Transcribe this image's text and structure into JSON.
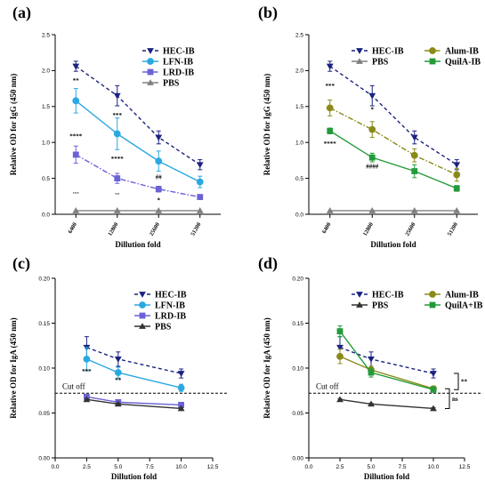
{
  "chart_data": [
    {
      "type": "line",
      "panel_label": "(a)",
      "xlabel": "Dillution fold",
      "ylabel": "Relative OD for IgG (450 nm)",
      "x_type": "category",
      "categories": [
        "6400",
        "12800",
        "25600",
        "51200"
      ],
      "ylim": [
        0,
        2.5
      ],
      "yticks": [
        "0.0",
        "0.5",
        "1.0",
        "1.5",
        "2.0",
        "2.5"
      ],
      "legend_position": "top-right",
      "series": [
        {
          "name": "HEC-IB",
          "color": "#1a237e",
          "dash": "4,3",
          "marker": "triangle-down",
          "values": [
            2.06,
            1.65,
            1.07,
            0.69
          ],
          "errors": [
            0.07,
            0.14,
            0.09,
            0.07
          ]
        },
        {
          "name": "LFN-IB",
          "color": "#2aa9e0",
          "dash": "",
          "marker": "circle",
          "values": [
            1.58,
            1.12,
            0.74,
            0.45
          ],
          "errors": [
            0.17,
            0.22,
            0.14,
            0.08
          ]
        },
        {
          "name": "LRD-IB",
          "color": "#6b62d6",
          "dash": "6,2,1.5,2",
          "marker": "square",
          "values": [
            0.83,
            0.5,
            0.35,
            0.24
          ],
          "errors": [
            0.12,
            0.07,
            0.04,
            0.02
          ]
        },
        {
          "name": "PBS",
          "color": "#808080",
          "dash": "",
          "marker": "triangle-up",
          "values": [
            0.05,
            0.05,
            0.05,
            0.05
          ],
          "errors": [
            0.0,
            0.0,
            0.0,
            0.0
          ]
        }
      ],
      "annotations": [
        {
          "text": "**",
          "x_index": 0,
          "y": 1.83
        },
        {
          "text": "****",
          "x_index": 0,
          "y": 1.06
        },
        {
          "text": "....",
          "x_index": 0,
          "y": 0.29
        },
        {
          "text": "***",
          "x_index": 1,
          "y": 1.35
        },
        {
          "text": "****",
          "x_index": 1,
          "y": 0.74
        },
        {
          "text": "...",
          "x_index": 1,
          "y": 0.28
        },
        {
          "text": "##",
          "x_index": 2,
          "y": 0.49
        },
        {
          "text": "*",
          "x_index": 2,
          "y": 0.17
        }
      ]
    },
    {
      "type": "line",
      "panel_label": "(b)",
      "xlabel": "Dillution fold",
      "ylabel": "Relative OD for IgG (450 nm)",
      "x_type": "category",
      "categories": [
        "6400",
        "12800",
        "25600",
        "51200"
      ],
      "ylim": [
        0,
        2.5
      ],
      "yticks": [
        "0.0",
        "0.5",
        "1.0",
        "1.5",
        "2.0",
        "2.5"
      ],
      "legend_position": "top-right",
      "legend_columns": 2,
      "series": [
        {
          "name": "HEC-IB",
          "color": "#1a237e",
          "dash": "4,3",
          "marker": "triangle-down",
          "values": [
            2.06,
            1.65,
            1.07,
            0.69
          ],
          "errors": [
            0.07,
            0.14,
            0.09,
            0.07
          ]
        },
        {
          "name": "PBS",
          "color": "#808080",
          "dash": "",
          "marker": "triangle-up",
          "values": [
            0.05,
            0.05,
            0.05,
            0.05
          ],
          "errors": [
            0.0,
            0.0,
            0.0,
            0.0
          ]
        },
        {
          "name": "Alum-IB",
          "color": "#8a8a18",
          "dash": "6,2,1.5,2",
          "marker": "circle",
          "values": [
            1.48,
            1.18,
            0.82,
            0.55
          ],
          "errors": [
            0.11,
            0.11,
            0.09,
            0.09
          ]
        },
        {
          "name": "QuilA-IB",
          "color": "#239b3a",
          "dash": "",
          "marker": "square",
          "values": [
            1.16,
            0.79,
            0.6,
            0.36
          ],
          "errors": [
            0.04,
            0.06,
            0.09,
            0.04
          ]
        }
      ],
      "annotations": [
        {
          "text": "***",
          "x_index": 0,
          "y": 1.76
        },
        {
          "text": "****",
          "x_index": 0,
          "y": 0.95
        },
        {
          "text": "*",
          "x_index": 1,
          "y": 1.43
        },
        {
          "text": "####",
          "x_index": 1,
          "y": 0.64
        }
      ]
    },
    {
      "type": "line",
      "panel_label": "(c)",
      "xlabel": "Dillution fold",
      "ylabel": "Relative OD for IgA (450 nm)",
      "x_type": "numeric",
      "xlim": [
        0,
        12.5
      ],
      "xticks": [
        "0.0",
        "2.5",
        "5.0",
        "7.5",
        "10.0",
        "12.5"
      ],
      "ylim": [
        0,
        0.2
      ],
      "yticks": [
        "0.00",
        "0.05",
        "0.10",
        "0.15",
        "0.20"
      ],
      "legend_position": "top-right",
      "reference_line": {
        "y": 0.072,
        "label": "Cut off"
      },
      "series": [
        {
          "name": "HEC-IB",
          "color": "#1a237e",
          "dash": "4,3",
          "marker": "triangle-down",
          "x": [
            2.5,
            5.0,
            10.0
          ],
          "values": [
            0.123,
            0.11,
            0.094
          ],
          "errors": [
            0.012,
            0.008,
            0.005
          ]
        },
        {
          "name": "LFN-IB",
          "color": "#2aa9e0",
          "dash": "",
          "marker": "circle",
          "x": [
            2.5,
            5.0,
            10.0
          ],
          "values": [
            0.11,
            0.095,
            0.078
          ],
          "errors": [
            0.013,
            0.006,
            0.004
          ]
        },
        {
          "name": "LRD-IB",
          "color": "#6b62d6",
          "dash": "",
          "marker": "square",
          "x": [
            2.5,
            5.0,
            10.0
          ],
          "values": [
            0.068,
            0.062,
            0.059
          ],
          "errors": [
            0.002,
            0.001,
            0.001
          ]
        },
        {
          "name": "PBS",
          "color": "#333333",
          "dash": "",
          "marker": "triangle-up",
          "x": [
            2.5,
            5.0,
            10.0
          ],
          "values": [
            0.065,
            0.06,
            0.055
          ],
          "errors": [
            0.001,
            0.001,
            0.001
          ]
        }
      ],
      "annotations": [
        {
          "text": "***",
          "x": 2.5,
          "y": 0.094
        },
        {
          "text": "**",
          "x": 5.0,
          "y": 0.084
        }
      ]
    },
    {
      "type": "line",
      "panel_label": "(d)",
      "xlabel": "Dillution fold",
      "ylabel": "Relative OD for IgA (450 nm)",
      "x_type": "numeric",
      "xlim": [
        0,
        12.5
      ],
      "xticks": [
        "0.0",
        "2.5",
        "5.0",
        "7.5",
        "10.0",
        "12.5"
      ],
      "ylim": [
        0,
        0.2
      ],
      "yticks": [
        "0.00",
        "0.05",
        "0.10",
        "0.15",
        "0.20"
      ],
      "legend_position": "top-right",
      "legend_columns": 2,
      "reference_line": {
        "y": 0.072,
        "label": "Cut off"
      },
      "series": [
        {
          "name": "HEC-IB",
          "color": "#1a237e",
          "dash": "4,3",
          "marker": "triangle-down",
          "x": [
            2.5,
            5.0,
            10.0
          ],
          "values": [
            0.123,
            0.11,
            0.094
          ],
          "errors": [
            0.012,
            0.008,
            0.005
          ]
        },
        {
          "name": "PBS",
          "color": "#333333",
          "dash": "",
          "marker": "triangle-up",
          "x": [
            2.5,
            5.0,
            10.0
          ],
          "values": [
            0.065,
            0.06,
            0.055
          ],
          "errors": [
            0.001,
            0.001,
            0.001
          ]
        },
        {
          "name": "Alum-IB",
          "color": "#8a8a18",
          "dash": "",
          "marker": "circle",
          "x": [
            2.5,
            5.0,
            10.0
          ],
          "values": [
            0.113,
            0.098,
            0.077
          ],
          "errors": [
            0.008,
            0.004,
            0.003
          ]
        },
        {
          "name": "QuilA+IB",
          "color": "#239b3a",
          "dash": "",
          "marker": "square",
          "x": [
            2.5,
            5.0,
            10.0
          ],
          "values": [
            0.141,
            0.095,
            0.076
          ],
          "errors": [
            0.006,
            0.005,
            0.003
          ]
        }
      ],
      "brackets": [
        {
          "text": "**",
          "from": 0.094,
          "to": 0.076,
          "x": 10.0,
          "level": 2
        },
        {
          "text": "ns",
          "from": 0.077,
          "to": 0.055,
          "x": 10.0,
          "level": 1
        }
      ]
    }
  ]
}
